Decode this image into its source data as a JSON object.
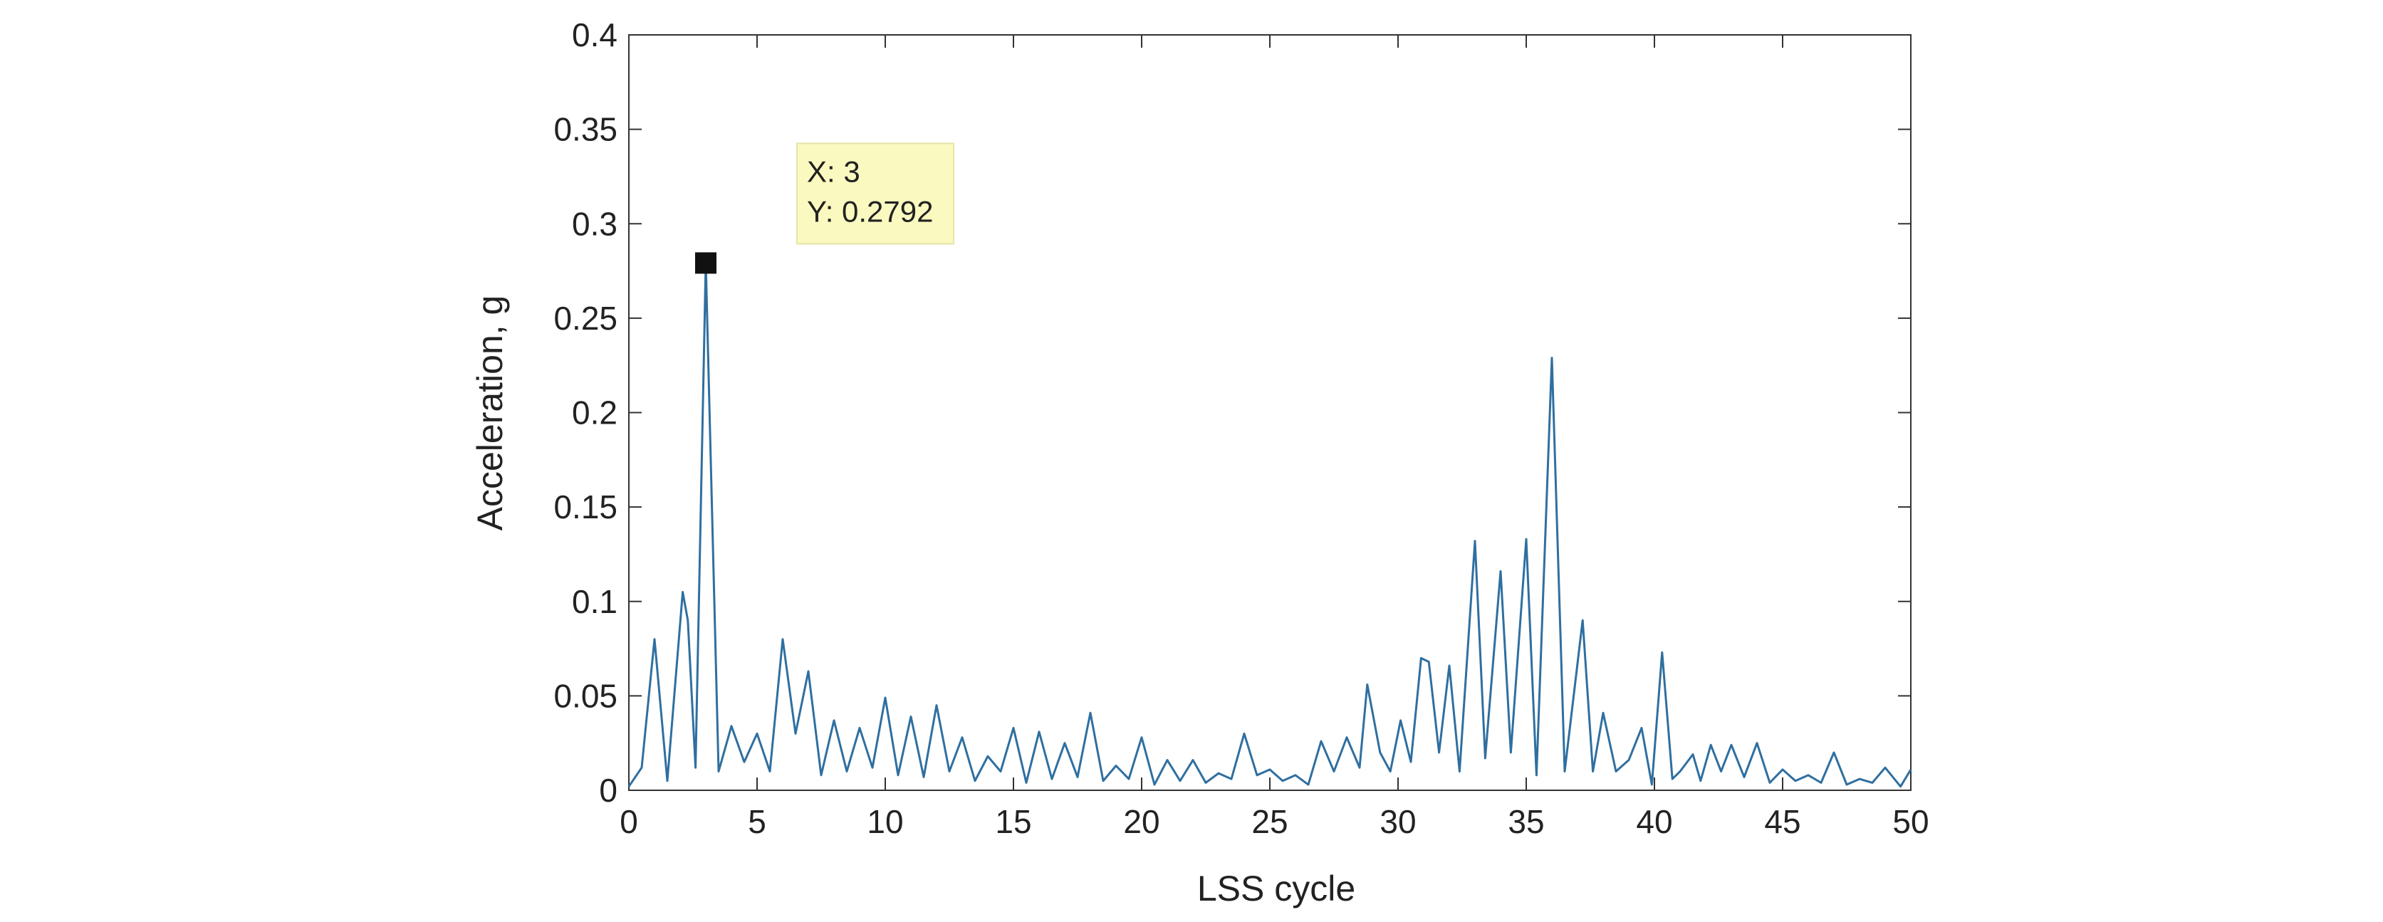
{
  "chart_data": {
    "type": "line",
    "xlabel": "LSS cycle",
    "ylabel": "Acceleration, g",
    "xlim": [
      0,
      50
    ],
    "ylim": [
      0,
      0.4
    ],
    "xticks": [
      0,
      5,
      10,
      15,
      20,
      25,
      30,
      35,
      40,
      45,
      50
    ],
    "yticks": [
      0,
      0.05,
      0.1,
      0.15,
      0.2,
      0.25,
      0.3,
      0.35,
      0.4
    ],
    "x": [
      0,
      0.5,
      1,
      1.5,
      2.1,
      2.3,
      2.6,
      3,
      3.5,
      4,
      4.5,
      5,
      5.5,
      6,
      6.5,
      7,
      7.5,
      8,
      8.5,
      9,
      9.5,
      10,
      10.5,
      11,
      11.5,
      12,
      12.5,
      13,
      13.5,
      14,
      14.5,
      15,
      15.5,
      16,
      16.5,
      17,
      17.5,
      18,
      18.5,
      19,
      19.5,
      20,
      20.5,
      21,
      21.5,
      22,
      22.5,
      23,
      23.5,
      24,
      24.5,
      25,
      25.5,
      26,
      26.5,
      27,
      27.5,
      28,
      28.5,
      28.8,
      29.3,
      29.7,
      30.1,
      30.5,
      30.9,
      31.2,
      31.6,
      32,
      32.4,
      33,
      33.4,
      34,
      34.4,
      35,
      35.4,
      36,
      36.5,
      37.2,
      37.6,
      38,
      38.5,
      39,
      39.5,
      39.9,
      40.3,
      40.7,
      41,
      41.5,
      41.8,
      42.2,
      42.6,
      43,
      43.5,
      44,
      44.5,
      45,
      45.5,
      46,
      46.5,
      47,
      47.5,
      48,
      48.5,
      49,
      49.6,
      50
    ],
    "series": [
      {
        "color": "#2f6fa0",
        "values": [
          0.002,
          0.012,
          0.08,
          0.005,
          0.105,
          0.09,
          0.012,
          0.2792,
          0.01,
          0.034,
          0.015,
          0.03,
          0.01,
          0.08,
          0.03,
          0.063,
          0.008,
          0.037,
          0.01,
          0.033,
          0.012,
          0.049,
          0.008,
          0.039,
          0.007,
          0.045,
          0.01,
          0.028,
          0.005,
          0.018,
          0.01,
          0.033,
          0.004,
          0.031,
          0.006,
          0.025,
          0.007,
          0.041,
          0.005,
          0.013,
          0.006,
          0.028,
          0.003,
          0.016,
          0.005,
          0.016,
          0.004,
          0.009,
          0.006,
          0.03,
          0.008,
          0.011,
          0.005,
          0.008,
          0.003,
          0.026,
          0.01,
          0.028,
          0.012,
          0.056,
          0.02,
          0.01,
          0.037,
          0.015,
          0.07,
          0.068,
          0.02,
          0.066,
          0.01,
          0.132,
          0.017,
          0.116,
          0.02,
          0.133,
          0.008,
          0.229,
          0.01,
          0.09,
          0.01,
          0.041,
          0.01,
          0.016,
          0.033,
          0.003,
          0.073,
          0.006,
          0.01,
          0.019,
          0.005,
          0.024,
          0.01,
          0.024,
          0.007,
          0.025,
          0.004,
          0.011,
          0.005,
          0.008,
          0.004,
          0.02,
          0.003,
          0.006,
          0.004,
          0.012,
          0.002,
          0.011
        ]
      }
    ],
    "annotation": {
      "x": 3,
      "y": 0.2792,
      "lines": [
        "X: 3",
        "Y: 0.2792"
      ]
    }
  }
}
